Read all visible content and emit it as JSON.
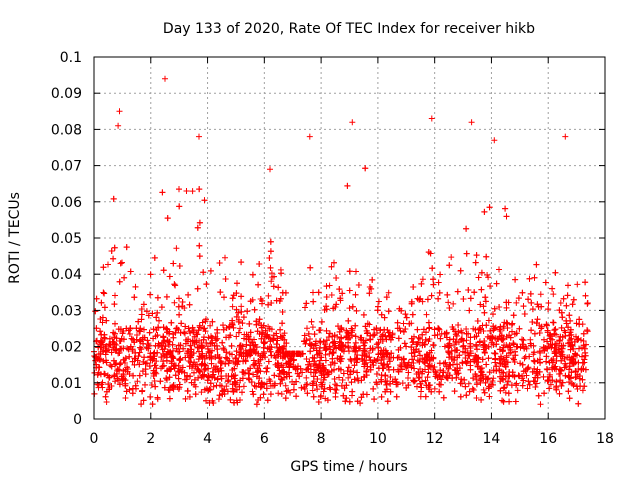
{
  "chart_data": {
    "type": "scatter",
    "title": "Day 133 of 2020, Rate Of TEC Index for receiver hikb",
    "xlabel": "GPS time / hours",
    "ylabel": "ROTI / TECUs",
    "xlim": [
      0,
      18
    ],
    "ylim": [
      0,
      0.1
    ],
    "x_ticks": [
      0,
      2,
      4,
      6,
      8,
      10,
      12,
      14,
      16,
      18
    ],
    "x_tick_labels": [
      "0",
      "2",
      "4",
      "6",
      "8",
      "10",
      "12",
      "14",
      "16",
      "18"
    ],
    "y_ticks": [
      0,
      0.01,
      0.02,
      0.03,
      0.04,
      0.05,
      0.06,
      0.07,
      0.08,
      0.09,
      0.1
    ],
    "y_tick_labels": [
      "0",
      "0.01",
      "0.02",
      "0.03",
      "0.04",
      "0.05",
      "0.06",
      "0.07",
      "0.08",
      "0.09",
      "0.1"
    ],
    "grid": true,
    "marker": "+",
    "marker_color": "#ff0000",
    "data_x_range": [
      0,
      17.4
    ],
    "notable_points": [
      {
        "x": 0.9,
        "y": 0.085
      },
      {
        "x": 0.85,
        "y": 0.081
      },
      {
        "x": 2.5,
        "y": 0.094
      },
      {
        "x": 3.7,
        "y": 0.078
      },
      {
        "x": 6.2,
        "y": 0.069
      },
      {
        "x": 7.6,
        "y": 0.078
      },
      {
        "x": 9.1,
        "y": 0.082
      },
      {
        "x": 11.9,
        "y": 0.083
      },
      {
        "x": 13.3,
        "y": 0.082
      },
      {
        "x": 14.1,
        "y": 0.077
      },
      {
        "x": 16.6,
        "y": 0.078
      }
    ],
    "activity_clusters": [
      {
        "center": 0.9,
        "spread": 0.25,
        "peak": 0.065
      },
      {
        "center": 2.8,
        "spread": 0.4,
        "peak": 0.07
      },
      {
        "center": 3.7,
        "spread": 0.2,
        "peak": 0.065
      },
      {
        "center": 6.2,
        "spread": 0.15,
        "peak": 0.05
      },
      {
        "center": 9.3,
        "spread": 0.4,
        "peak": 0.075
      },
      {
        "center": 11.9,
        "spread": 0.3,
        "peak": 0.065
      },
      {
        "center": 13.3,
        "spread": 0.4,
        "peak": 0.06
      },
      {
        "center": 14.2,
        "spread": 0.3,
        "peak": 0.065
      }
    ],
    "series": [
      {
        "name": "ROTI",
        "description": "dense scatter, baseline roughly 0.005-0.03 TECU/min"
      }
    ]
  }
}
